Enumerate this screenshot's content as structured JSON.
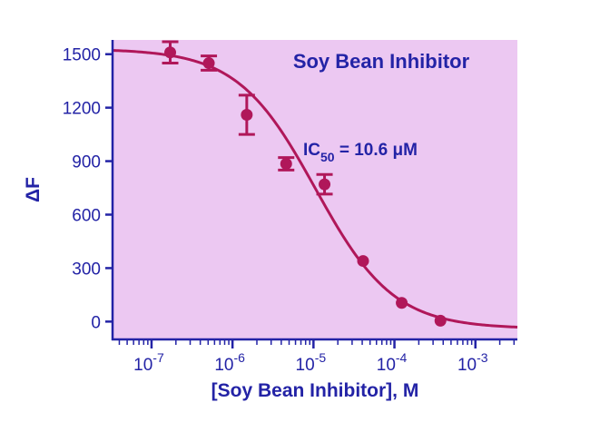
{
  "chart_data": {
    "type": "scatter",
    "title": "Soy Bean Inhibitor",
    "xlabel": "[Soy Bean Inhibitor], M",
    "ylabel": "ΔF",
    "x_scale": "log",
    "xlim": [
      3.3e-08,
      0.0033
    ],
    "ylim": [
      -100,
      1580
    ],
    "y_ticks": [
      0,
      300,
      600,
      900,
      1200,
      1500
    ],
    "y_tick_labels": [
      "0",
      "300",
      "600",
      "900",
      "1200",
      "1500"
    ],
    "x_ticks": [
      1e-07,
      1e-06,
      1e-05,
      0.0001,
      0.001
    ],
    "x_tick_labels": [
      {
        "base": "10",
        "exp": "-7"
      },
      {
        "base": "10",
        "exp": "-6"
      },
      {
        "base": "10",
        "exp": "-5"
      },
      {
        "base": "10",
        "exp": "-4"
      },
      {
        "base": "10",
        "exp": "-3"
      }
    ],
    "annotation": {
      "prefix": "IC",
      "subscript": "50",
      "suffix": " = 10.6 μM"
    },
    "series": [
      {
        "points": [
          {
            "x": 1.7e-07,
            "y": 1510,
            "err": 60
          },
          {
            "x": 5.1e-07,
            "y": 1450,
            "err": 40
          },
          {
            "x": 1.5e-06,
            "y": 1160,
            "err": 110
          },
          {
            "x": 4.6e-06,
            "y": 885,
            "err": 35
          },
          {
            "x": 1.37e-05,
            "y": 770,
            "err": 55
          },
          {
            "x": 4.1e-05,
            "y": 340,
            "err": 0
          },
          {
            "x": 0.000123,
            "y": 105,
            "err": 0
          },
          {
            "x": 0.00037,
            "y": 5,
            "err": 0
          }
        ],
        "fit": {
          "model": "four-parameter logistic",
          "top": 1530,
          "bottom": -40,
          "ic50": 1.06e-05,
          "hill": 0.9
        }
      }
    ],
    "colors": {
      "plot_background": "#ecc8f2",
      "data": "#b0175a",
      "axis": "#2323a6",
      "text": "#2323a6"
    },
    "grid": false
  }
}
